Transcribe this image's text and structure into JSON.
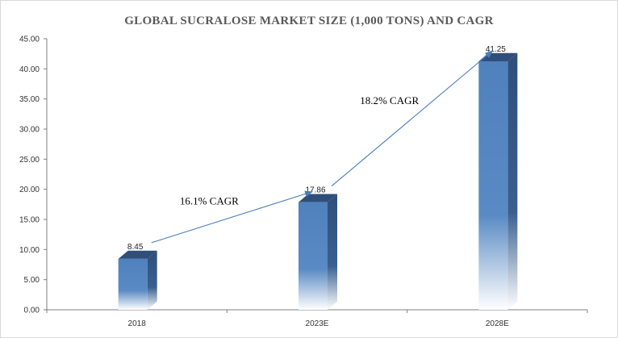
{
  "chart_data": {
    "type": "bar",
    "title": "GLOBAL SUCRALOSE MARKET SIZE (1,000 TONS) AND CAGR",
    "categories": [
      "2018",
      "2023E",
      "2028E"
    ],
    "values": [
      8.45,
      17.86,
      41.25
    ],
    "data_labels": [
      "8.45",
      "17.86",
      "41.25"
    ],
    "ylim": [
      0,
      45
    ],
    "y_ticks": [
      "0.00",
      "5.00",
      "10.00",
      "15.00",
      "20.00",
      "25.00",
      "30.00",
      "35.00",
      "40.00",
      "45.00"
    ],
    "y_tick_values": [
      0,
      5,
      10,
      15,
      20,
      25,
      30,
      35,
      40,
      45
    ],
    "grid": false,
    "bar_color": "#4f81bd",
    "bar_dark_color": "#2f4f7a",
    "arrow_color": "#4a7ebb",
    "annotations": [
      {
        "text": "16.1% CAGR",
        "from": "2018",
        "to": "2023E"
      },
      {
        "text": "18.2% CAGR",
        "from": "2023E",
        "to": "2028E"
      }
    ]
  }
}
